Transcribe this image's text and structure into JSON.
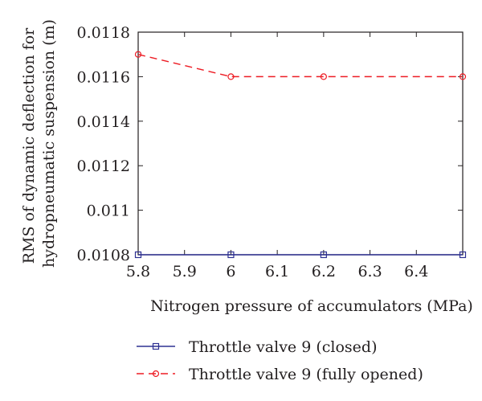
{
  "chart_data": {
    "type": "line",
    "xlabel": "Nitrogen pressure of accumulators (MPa)",
    "ylabel_lines": [
      "RMS of dynamic deflection for",
      "hydropneumatic suspension (m)"
    ],
    "xlim": [
      5.8,
      6.5
    ],
    "ylim": [
      0.0108,
      0.0118
    ],
    "xticks": [
      5.8,
      5.9,
      6.0,
      6.1,
      6.2,
      6.3,
      6.4
    ],
    "xtick_labels": [
      "5.8",
      "5.9",
      "6",
      "6.1",
      "6.2",
      "6.3",
      "6.4"
    ],
    "yticks": [
      0.0108,
      0.011,
      0.0112,
      0.0114,
      0.0116,
      0.0118
    ],
    "ytick_labels": [
      "0.0108",
      "0.011",
      "0.0112",
      "0.0114",
      "0.0116",
      "0.0118"
    ],
    "grid": false,
    "legend_position": "below",
    "series": [
      {
        "name": "Throttle valve 9 (closed)",
        "color": "#2e3192",
        "line_style": "solid",
        "marker": "square",
        "x": [
          5.8,
          6.0,
          6.2,
          6.5
        ],
        "y": [
          0.0108,
          0.0108,
          0.0108,
          0.0108
        ]
      },
      {
        "name": "Throttle valve 9 (fully opened)",
        "color": "#ed1c24",
        "line_style": "dashed",
        "marker": "circle",
        "x": [
          5.8,
          6.0,
          6.2,
          6.5
        ],
        "y": [
          0.0117,
          0.0116,
          0.0116,
          0.0116
        ]
      }
    ]
  }
}
